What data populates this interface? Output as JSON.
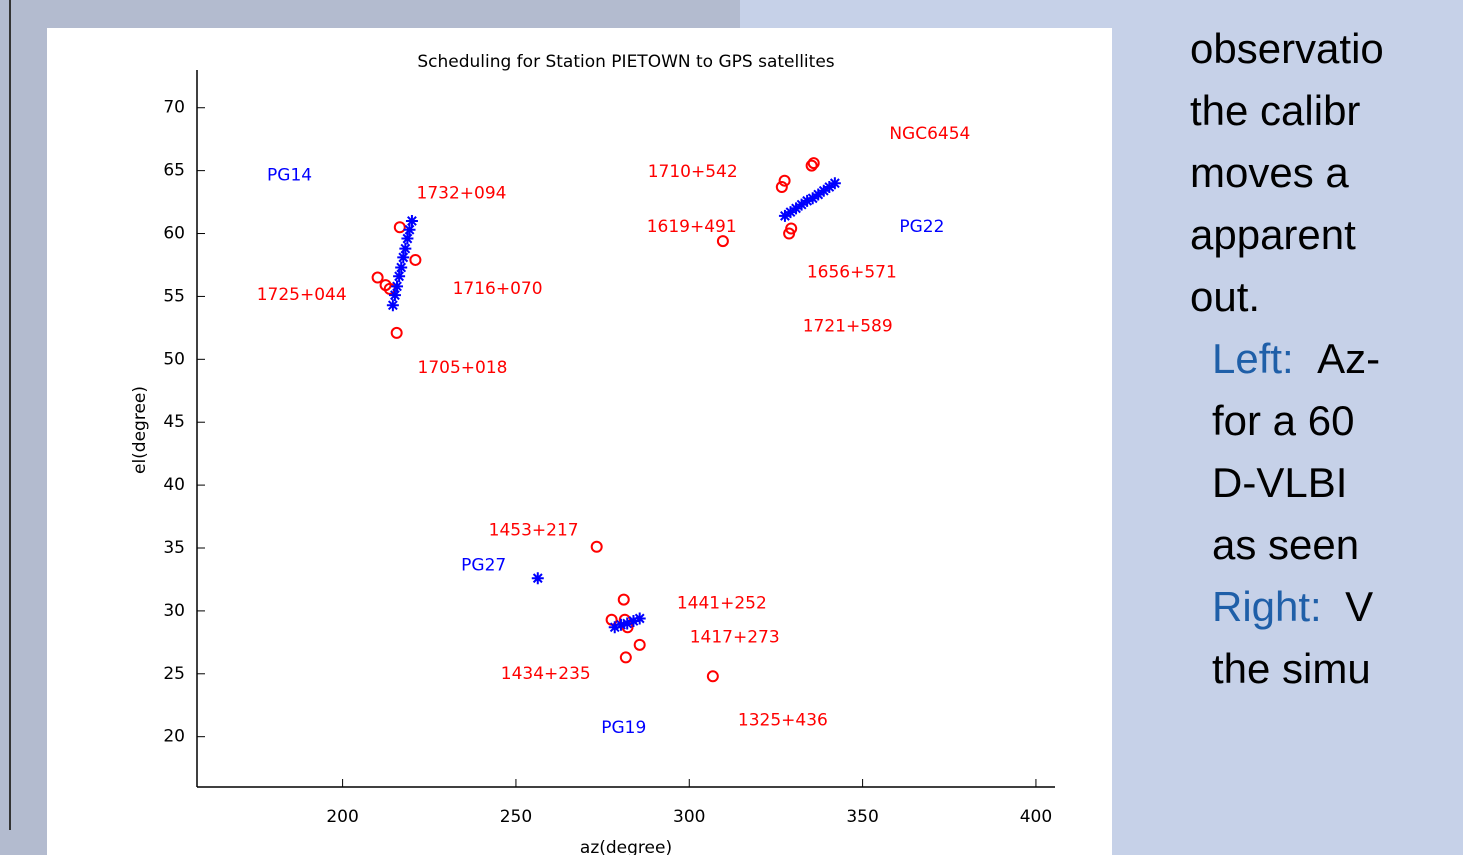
{
  "chart_data": {
    "type": "scatter",
    "title": "Scheduling for Station PIETOWN  to GPS satellites",
    "xlabel": "az(degree)",
    "ylabel": "el(degree)",
    "xlim": [
      158,
      405.5
    ],
    "ylim": [
      16,
      73
    ],
    "xticks": [
      200,
      250,
      300,
      350,
      400
    ],
    "yticks": [
      20,
      25,
      30,
      35,
      40,
      45,
      50,
      55,
      60,
      65,
      70
    ],
    "grid": false,
    "series": [
      {
        "color": "#ff0000",
        "marker": "o",
        "x": [
          216.5,
          221,
          210.1,
          212.4,
          213.6,
          215.6,
          326.7,
          327.5,
          335.3,
          335.9,
          329.4,
          328.8,
          309.7,
          273.3,
          281.1,
          277.6,
          281.4,
          282.2,
          285.7,
          281.7,
          306.8
        ],
        "values": [
          60.5,
          57.9,
          56.5,
          55.9,
          55.6,
          52.1,
          63.7,
          64.2,
          65.4,
          65.6,
          60.4,
          60.0,
          59.4,
          35.1,
          30.9,
          29.3,
          29.3,
          28.7,
          27.3,
          26.3,
          24.8
        ]
      },
      {
        "color": "#0000ff",
        "marker": "*",
        "x": [
          214.5,
          215.1,
          215.7,
          216.3,
          216.9,
          217.5,
          218.1,
          218.7,
          219.3,
          220,
          327.6,
          329.2,
          330.8,
          332.4,
          334,
          335.6,
          337.2,
          338.8,
          340.4,
          342,
          256.3,
          278.5,
          280.3,
          282.1,
          283.9,
          285.7
        ],
        "values": [
          54.3,
          55.1,
          55.8,
          56.6,
          57.3,
          58.1,
          58.8,
          59.6,
          60.3,
          61.0,
          61.4,
          61.7,
          62.0,
          62.3,
          62.6,
          62.8,
          63.1,
          63.4,
          63.7,
          64.0,
          32.6,
          28.7,
          28.9,
          29.0,
          29.2,
          29.4
        ]
      }
    ],
    "annotations": [
      {
        "text": "PG14",
        "x": 184.7,
        "y": 64.6,
        "color": "#0000ff"
      },
      {
        "text": "1732+094",
        "x": 234.3,
        "y": 63.2,
        "color": "#ff0000"
      },
      {
        "text": "1725+044",
        "x": 188.2,
        "y": 55.1,
        "color": "#ff0000"
      },
      {
        "text": "1716+070",
        "x": 244.7,
        "y": 55.6,
        "color": "#ff0000"
      },
      {
        "text": "1705+018",
        "x": 234.6,
        "y": 49.3,
        "color": "#ff0000"
      },
      {
        "text": "1710+542",
        "x": 301.0,
        "y": 64.9,
        "color": "#ff0000"
      },
      {
        "text": "NGC6454",
        "x": 369.4,
        "y": 67.9,
        "color": "#ff0000"
      },
      {
        "text": "1619+491",
        "x": 300.7,
        "y": 60.5,
        "color": "#ff0000"
      },
      {
        "text": "PG22",
        "x": 367.1,
        "y": 60.5,
        "color": "#0000ff"
      },
      {
        "text": "1656+571",
        "x": 346.9,
        "y": 56.9,
        "color": "#ff0000"
      },
      {
        "text": "1721+589",
        "x": 345.7,
        "y": 52.6,
        "color": "#ff0000"
      },
      {
        "text": "1453+217",
        "x": 255.1,
        "y": 36.4,
        "color": "#ff0000"
      },
      {
        "text": "PG27",
        "x": 240.7,
        "y": 33.6,
        "color": "#0000ff"
      },
      {
        "text": "1441+252",
        "x": 309.4,
        "y": 30.6,
        "color": "#ff0000"
      },
      {
        "text": "1417+273",
        "x": 313.1,
        "y": 27.9,
        "color": "#ff0000"
      },
      {
        "text": "1434+235",
        "x": 258.6,
        "y": 25.0,
        "color": "#ff0000"
      },
      {
        "text": "PG19",
        "x": 281.1,
        "y": 20.7,
        "color": "#0000ff"
      },
      {
        "text": "1325+436",
        "x": 327.0,
        "y": 21.3,
        "color": "#ff0000"
      }
    ]
  },
  "slide": {
    "lines": [
      {
        "text": "observatio"
      },
      {
        "text": "the  calibr"
      },
      {
        "text": "moves  a"
      },
      {
        "text": "apparent"
      },
      {
        "text": "out."
      },
      {
        "label": "Left:",
        "text": "Az-"
      },
      {
        "text": "for  a  60"
      },
      {
        "text": "D-VLBI"
      },
      {
        "text": "as seen"
      },
      {
        "label": "Right:",
        "text": "V"
      },
      {
        "text": "the simu"
      }
    ]
  }
}
